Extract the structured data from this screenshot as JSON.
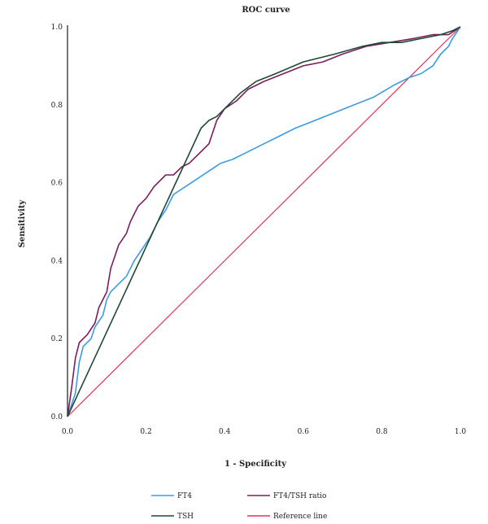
{
  "chart_data": {
    "type": "line",
    "title": "ROC curve",
    "xlabel": "1 - Specificity",
    "ylabel": "Sensitivity",
    "xlim": [
      0,
      1
    ],
    "ylim": [
      0,
      1
    ],
    "x_ticks": [
      "0.0",
      "0.2",
      "0.4",
      "0.6",
      "0.8",
      "1.0"
    ],
    "y_ticks": [
      "0.0",
      "0.2",
      "0.4",
      "0.6",
      "0.8",
      "1.0"
    ],
    "grid": false,
    "legend_position": "bottom",
    "series": [
      {
        "name": "FT4",
        "color": "#3d9be0",
        "points": [
          [
            0,
            0
          ],
          [
            0.02,
            0.06
          ],
          [
            0.03,
            0.14
          ],
          [
            0.04,
            0.18
          ],
          [
            0.06,
            0.2
          ],
          [
            0.07,
            0.23
          ],
          [
            0.09,
            0.26
          ],
          [
            0.1,
            0.3
          ],
          [
            0.11,
            0.32
          ],
          [
            0.13,
            0.34
          ],
          [
            0.15,
            0.36
          ],
          [
            0.17,
            0.4
          ],
          [
            0.19,
            0.43
          ],
          [
            0.21,
            0.46
          ],
          [
            0.23,
            0.5
          ],
          [
            0.25,
            0.53
          ],
          [
            0.27,
            0.57
          ],
          [
            0.3,
            0.59
          ],
          [
            0.33,
            0.61
          ],
          [
            0.36,
            0.63
          ],
          [
            0.39,
            0.65
          ],
          [
            0.42,
            0.66
          ],
          [
            0.46,
            0.68
          ],
          [
            0.5,
            0.7
          ],
          [
            0.54,
            0.72
          ],
          [
            0.58,
            0.74
          ],
          [
            0.63,
            0.76
          ],
          [
            0.68,
            0.78
          ],
          [
            0.73,
            0.8
          ],
          [
            0.78,
            0.82
          ],
          [
            0.83,
            0.85
          ],
          [
            0.87,
            0.87
          ],
          [
            0.9,
            0.88
          ],
          [
            0.93,
            0.9
          ],
          [
            0.95,
            0.93
          ],
          [
            0.97,
            0.95
          ],
          [
            0.98,
            0.97
          ],
          [
            1,
            1
          ]
        ]
      },
      {
        "name": "FT4/TSH ratio",
        "color": "#7b1c5e",
        "points": [
          [
            0,
            0
          ],
          [
            0.01,
            0.07
          ],
          [
            0.02,
            0.15
          ],
          [
            0.03,
            0.19
          ],
          [
            0.05,
            0.21
          ],
          [
            0.07,
            0.24
          ],
          [
            0.08,
            0.28
          ],
          [
            0.1,
            0.32
          ],
          [
            0.11,
            0.38
          ],
          [
            0.12,
            0.41
          ],
          [
            0.13,
            0.44
          ],
          [
            0.15,
            0.47
          ],
          [
            0.16,
            0.5
          ],
          [
            0.18,
            0.54
          ],
          [
            0.2,
            0.56
          ],
          [
            0.22,
            0.59
          ],
          [
            0.25,
            0.62
          ],
          [
            0.27,
            0.62
          ],
          [
            0.29,
            0.64
          ],
          [
            0.31,
            0.65
          ],
          [
            0.33,
            0.67
          ],
          [
            0.36,
            0.7
          ],
          [
            0.38,
            0.76
          ],
          [
            0.4,
            0.79
          ],
          [
            0.43,
            0.81
          ],
          [
            0.46,
            0.84
          ],
          [
            0.5,
            0.86
          ],
          [
            0.55,
            0.88
          ],
          [
            0.6,
            0.9
          ],
          [
            0.65,
            0.91
          ],
          [
            0.7,
            0.93
          ],
          [
            0.76,
            0.95
          ],
          [
            0.82,
            0.96
          ],
          [
            0.88,
            0.97
          ],
          [
            0.93,
            0.98
          ],
          [
            0.97,
            0.98
          ],
          [
            1,
            1
          ]
        ]
      },
      {
        "name": "TSH",
        "color": "#1d4a33",
        "points": [
          [
            0,
            0
          ],
          [
            0.34,
            0.74
          ],
          [
            0.36,
            0.76
          ],
          [
            0.38,
            0.77
          ],
          [
            0.4,
            0.79
          ],
          [
            0.44,
            0.83
          ],
          [
            0.48,
            0.86
          ],
          [
            0.53,
            0.88
          ],
          [
            0.6,
            0.91
          ],
          [
            0.68,
            0.93
          ],
          [
            0.75,
            0.95
          ],
          [
            0.8,
            0.96
          ],
          [
            0.85,
            0.96
          ],
          [
            0.9,
            0.97
          ],
          [
            0.95,
            0.98
          ],
          [
            0.98,
            0.99
          ],
          [
            1,
            1
          ]
        ]
      },
      {
        "name": "Reference line",
        "color": "#e6335b",
        "points": [
          [
            0,
            0
          ],
          [
            1,
            1
          ]
        ]
      }
    ]
  }
}
